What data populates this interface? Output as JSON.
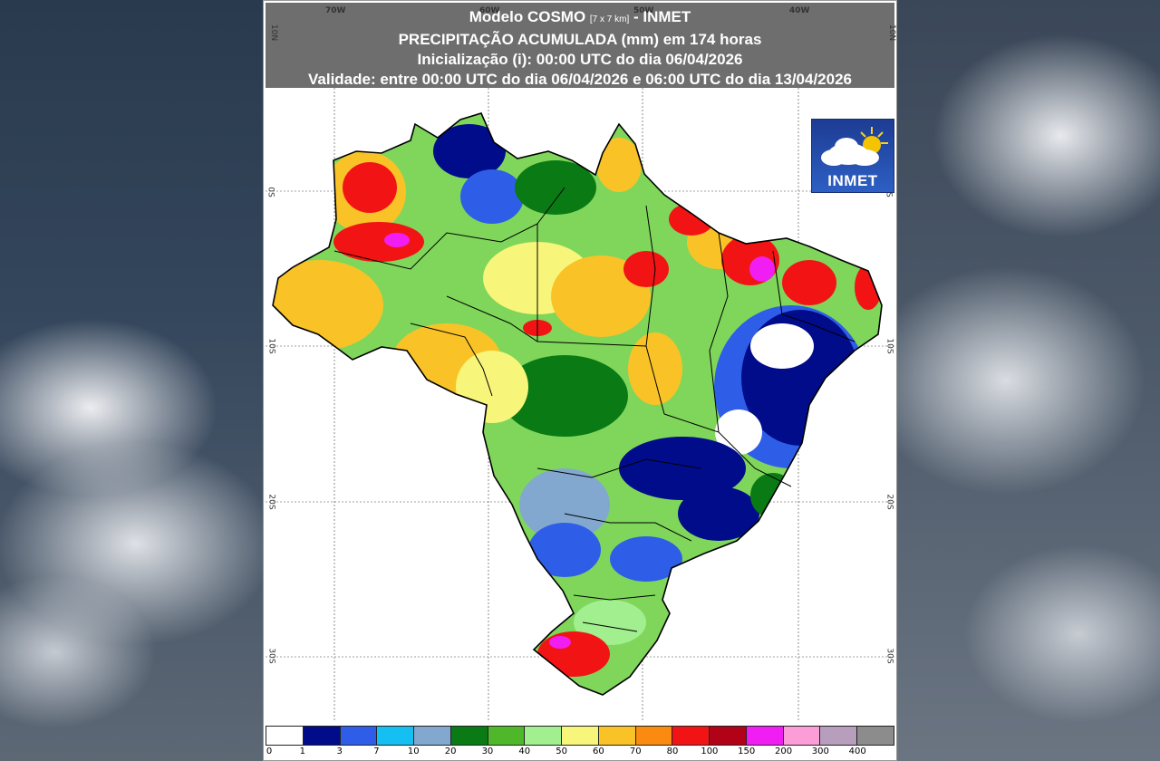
{
  "header": {
    "line1_prefix": "Modelo COSMO ",
    "line1_res": "[7 x 7 km]",
    "line1_suffix": " - INMET",
    "line2": "PRECIPITAÇÃO ACUMULADA (mm) em 174 horas",
    "line3": "Inicialização (i): 00:00 UTC do dia 06/04/2026",
    "line4": "Validade: entre 00:00 UTC do dia 06/04/2026 e 06:00 UTC do dia 13/04/2026"
  },
  "axes": {
    "lon_labels": [
      "70W",
      "60W",
      "50W",
      "40W"
    ],
    "lat_labels": [
      "10N",
      "0S",
      "10S",
      "20S",
      "30S"
    ]
  },
  "logo": {
    "text": "INMET",
    "icon": "sun-cloud-icon"
  },
  "legend": {
    "labels": [
      "0",
      "1",
      "3",
      "7",
      "10",
      "20",
      "30",
      "40",
      "50",
      "60",
      "70",
      "80",
      "100",
      "150",
      "200",
      "300",
      "400"
    ],
    "colors": [
      "#ffffff",
      "#000c8a",
      "#2e5de8",
      "#16bff2",
      "#83a8cf",
      "#0a7a14",
      "#4fb82a",
      "#a2ef8f",
      "#f8f67a",
      "#f9c328",
      "#fa8a10",
      "#f21414",
      "#b20218",
      "#f01ef2",
      "#fb9ed8",
      "#b89ebd",
      "#8c8c8c"
    ]
  }
}
